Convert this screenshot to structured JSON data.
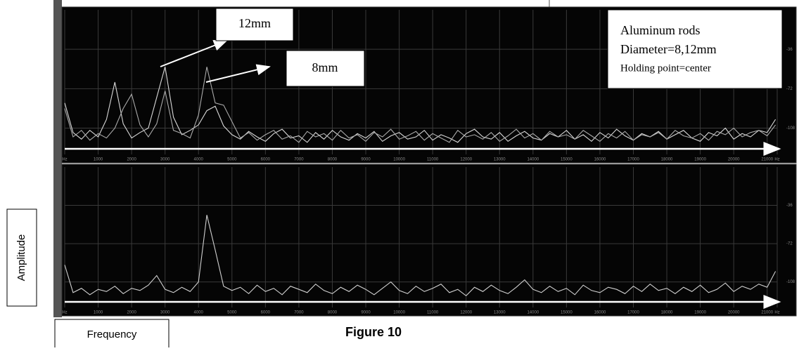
{
  "chart_data": [
    {
      "type": "line",
      "annotations": [
        "12mm",
        "8mm"
      ],
      "note": [
        "Aluminum rods",
        "Diameter=8,12mm",
        "Holding point=center"
      ],
      "x": [
        0,
        250,
        500,
        750,
        1000,
        1250,
        1500,
        1750,
        2000,
        2250,
        2500,
        2750,
        3000,
        3250,
        3500,
        3750,
        4000,
        4250,
        4500,
        4750,
        5000,
        5250,
        5500,
        5750,
        6000,
        6250,
        6500,
        6750,
        7000,
        7250,
        7500,
        7750,
        8000,
        8250,
        8500,
        8750,
        9000,
        9250,
        9500,
        9750,
        10000,
        10250,
        10500,
        10750,
        11000,
        11250,
        11500,
        11750,
        12000,
        12250,
        12500,
        12750,
        13000,
        13250,
        13500,
        13750,
        14000,
        14250,
        14500,
        14750,
        15000,
        15250,
        15500,
        15750,
        16000,
        16250,
        16500,
        16750,
        17000,
        17250,
        17500,
        17750,
        18000,
        18250,
        18500,
        18750,
        19000,
        19250,
        19500,
        19750,
        20000,
        20250,
        20500,
        20750,
        21000,
        21250
      ],
      "series": [
        {
          "color": "#d8d8d8",
          "values": [
            -85,
            -112,
            -118,
            -110,
            -116,
            -100,
            -66,
            -104,
            -117,
            -112,
            -108,
            -80,
            -52,
            -98,
            -114,
            -110,
            -105,
            -92,
            -88,
            -106,
            -114,
            -118,
            -111,
            -116,
            -120,
            -113,
            -109,
            -117,
            -115,
            -121,
            -112,
            -118,
            -110,
            -116,
            -119,
            -113,
            -117,
            -111,
            -120,
            -115,
            -112,
            -118,
            -116,
            -110,
            -119,
            -114,
            -117,
            -121,
            -113,
            -109,
            -116,
            -118,
            -112,
            -120,
            -115,
            -111,
            -117,
            -119,
            -113,
            -116,
            -110,
            -118,
            -114,
            -120,
            -112,
            -117,
            -109,
            -115,
            -119,
            -113,
            -116,
            -111,
            -118,
            -114,
            -110,
            -117,
            -120,
            -112,
            -115,
            -108,
            -118,
            -113,
            -116,
            -110,
            -112,
            -100
          ]
        },
        {
          "color": "#aaaaaa",
          "values": [
            -90,
            -116,
            -110,
            -119,
            -113,
            -117,
            -108,
            -90,
            -77,
            -105,
            -116,
            -104,
            -74,
            -110,
            -113,
            -117,
            -96,
            -52,
            -85,
            -87,
            -102,
            -117,
            -112,
            -119,
            -114,
            -110,
            -118,
            -115,
            -121,
            -111,
            -116,
            -113,
            -119,
            -110,
            -117,
            -114,
            -120,
            -112,
            -116,
            -109,
            -118,
            -115,
            -111,
            -119,
            -113,
            -117,
            -121,
            -110,
            -116,
            -114,
            -118,
            -112,
            -120,
            -115,
            -109,
            -117,
            -113,
            -119,
            -111,
            -116,
            -114,
            -118,
            -110,
            -115,
            -120,
            -113,
            -117,
            -111,
            -119,
            -114,
            -116,
            -112,
            -118,
            -110,
            -115,
            -117,
            -113,
            -119,
            -111,
            -114,
            -108,
            -116,
            -112,
            -110,
            -115,
            -105
          ]
        }
      ],
      "xlim": [
        0,
        21300
      ],
      "ylim": [
        -132,
        0
      ],
      "xticks": [
        {
          "value": 0,
          "label": "Hz"
        },
        1000,
        2000,
        3000,
        4000,
        5000,
        6000,
        7000,
        8000,
        9000,
        10000,
        11000,
        12000,
        13000,
        14000,
        15000,
        16000,
        17000,
        18000,
        19000,
        20000,
        21000,
        {
          "value": 21300,
          "label": "Hz"
        }
      ],
      "yticks": [
        -36,
        -72,
        -108
      ],
      "grid": true
    },
    {
      "type": "line",
      "x": [
        0,
        250,
        500,
        750,
        1000,
        1250,
        1500,
        1750,
        2000,
        2250,
        2500,
        2750,
        3000,
        3250,
        3500,
        3750,
        4000,
        4250,
        4500,
        4750,
        5000,
        5250,
        5500,
        5750,
        6000,
        6250,
        6500,
        6750,
        7000,
        7250,
        7500,
        7750,
        8000,
        8250,
        8500,
        8750,
        9000,
        9250,
        9500,
        9750,
        10000,
        10250,
        10500,
        10750,
        11000,
        11250,
        11500,
        11750,
        12000,
        12250,
        12500,
        12750,
        13000,
        13250,
        13500,
        13750,
        14000,
        14250,
        14500,
        14750,
        15000,
        15250,
        15500,
        15750,
        16000,
        16250,
        16500,
        16750,
        17000,
        17250,
        17500,
        17750,
        18000,
        18250,
        18500,
        18750,
        19000,
        19250,
        19500,
        19750,
        20000,
        20250,
        20500,
        20750,
        21000,
        21250
      ],
      "series": [
        {
          "color": "#d0d0d0",
          "values": [
            -92,
            -118,
            -114,
            -120,
            -115,
            -117,
            -112,
            -119,
            -114,
            -116,
            -111,
            -102,
            -115,
            -118,
            -113,
            -117,
            -108,
            -45,
            -78,
            -112,
            -116,
            -113,
            -119,
            -111,
            -117,
            -114,
            -120,
            -112,
            -115,
            -118,
            -110,
            -116,
            -119,
            -113,
            -117,
            -111,
            -115,
            -120,
            -114,
            -108,
            -116,
            -119,
            -112,
            -117,
            -114,
            -110,
            -118,
            -115,
            -121,
            -113,
            -117,
            -111,
            -116,
            -119,
            -113,
            -106,
            -115,
            -118,
            -112,
            -117,
            -114,
            -120,
            -111,
            -116,
            -118,
            -113,
            -115,
            -119,
            -112,
            -117,
            -110,
            -116,
            -114,
            -119,
            -113,
            -117,
            -111,
            -118,
            -115,
            -109,
            -117,
            -112,
            -115,
            -110,
            -113,
            -98
          ]
        }
      ],
      "xlim": [
        0,
        21300
      ],
      "ylim": [
        -132,
        0
      ],
      "xticks": [
        {
          "value": 0,
          "label": "Hz"
        },
        1000,
        2000,
        3000,
        4000,
        5000,
        6000,
        7000,
        8000,
        9000,
        10000,
        11000,
        12000,
        13000,
        14000,
        15000,
        16000,
        17000,
        18000,
        19000,
        20000,
        21000,
        {
          "value": 21300,
          "label": "Hz"
        }
      ],
      "yticks": [
        -36,
        -72,
        -108
      ],
      "grid": true
    }
  ],
  "figure": {
    "y_label": "Amplitude",
    "x_label": "Frequency",
    "caption": "Figure 10"
  }
}
